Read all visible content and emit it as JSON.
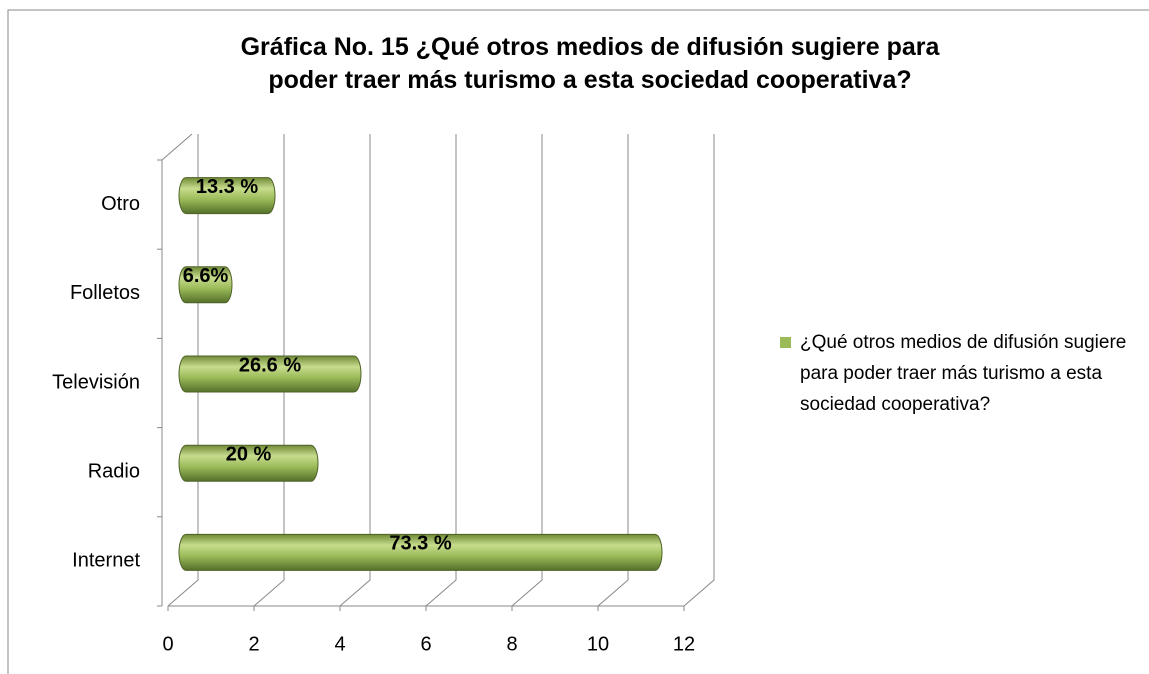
{
  "chart_data": {
    "type": "bar",
    "orientation": "horizontal",
    "title": [
      "Gráfica No. 15 ¿Qué otros medios de difusión sugiere para",
      "poder traer más turismo a esta sociedad cooperativa?"
    ],
    "categories": [
      "Internet",
      "Radio",
      "Televisión",
      "Folletos",
      "Otro"
    ],
    "series": [
      {
        "name": "¿Qué otros medios de difusión sugiere para poder traer más turismo a esta sociedad cooperativa?",
        "color": "#9bbb59",
        "values": [
          11,
          3,
          4,
          1,
          2
        ],
        "value_labels": [
          "73.3 %",
          "20 %",
          "26.6 %",
          "6.6%",
          "13.3 %"
        ]
      }
    ],
    "xlim": [
      0,
      12
    ],
    "xticks": [
      0,
      2,
      4,
      6,
      8,
      10,
      12
    ],
    "grid": true,
    "legend": "right"
  }
}
